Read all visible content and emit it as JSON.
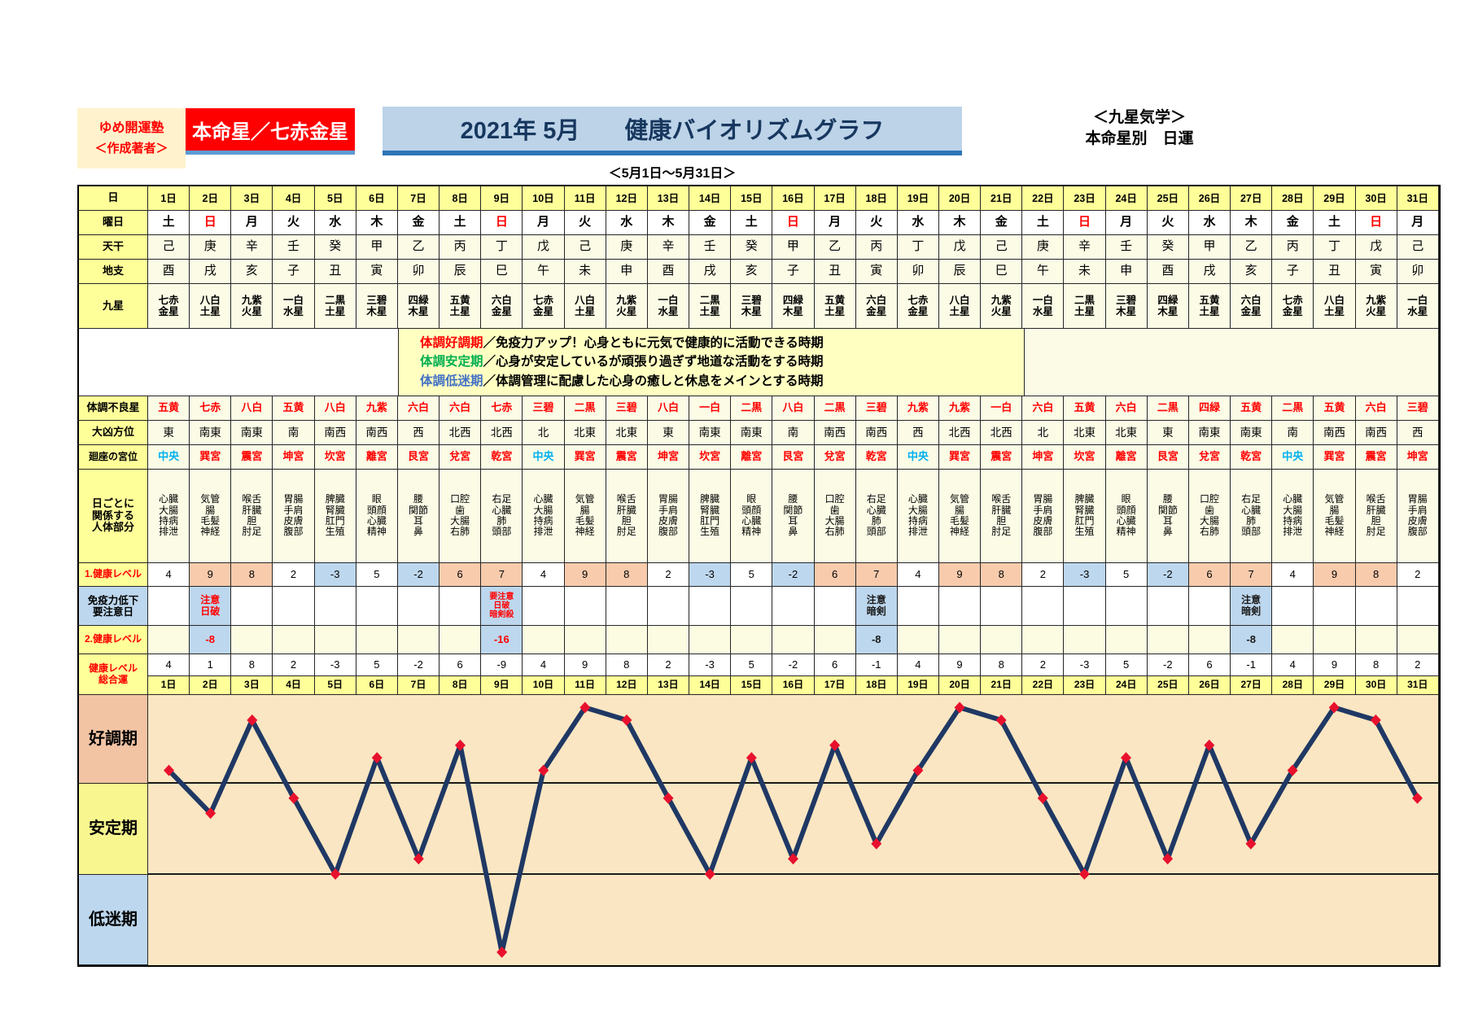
{
  "header": {
    "school": "ゆめ開運塾",
    "author_label": "＜作成著者＞",
    "honmei_label": "本命星／七赤金星",
    "title_date": "2021年 5月",
    "title_main": "健康バイオリズムグラフ",
    "subtitle": "＜5月1日～5月31日＞",
    "right_line1": "＜九星気学＞",
    "right_line2": "本命星別　日運"
  },
  "row_labels": {
    "day": "日",
    "weekday": "曜日",
    "stem": "天干",
    "branch": "地支",
    "star": "九星",
    "bad_star": "体調不良星",
    "direction": "大凶方位",
    "palace": "廻座の宮位",
    "body": "日ごとに\n関係する\n人体部分",
    "health1": "1.健康レベル",
    "immunity": "免疫力低下\n要注意日",
    "health2": "2.健康レベル",
    "total": "健康レベル\n総合運"
  },
  "legend": {
    "items": [
      {
        "term": "体調好調期",
        "color": "#FF0000",
        "desc": "／免疫力アップ！心身ともに元気で健康的に活動できる時期"
      },
      {
        "term": "体調安定期",
        "color": "#00B050",
        "desc": "／心身が安定しているが頑張り過ぎず地道な活動をする時期"
      },
      {
        "term": "体調低迷期",
        "color": "#4472C4",
        "desc": "／体調管理に配慮した心身の癒しと休息をメインとする時期"
      }
    ]
  },
  "days": {
    "numbers": [
      "1日",
      "2日",
      "3日",
      "4日",
      "5日",
      "6日",
      "7日",
      "8日",
      "9日",
      "10日",
      "11日",
      "12日",
      "13日",
      "14日",
      "15日",
      "16日",
      "17日",
      "18日",
      "19日",
      "20日",
      "21日",
      "22日",
      "23日",
      "24日",
      "25日",
      "26日",
      "27日",
      "28日",
      "29日",
      "30日",
      "31日"
    ],
    "weekdays": [
      "土",
      "日",
      "月",
      "火",
      "水",
      "木",
      "金",
      "土",
      "日",
      "月",
      "火",
      "水",
      "木",
      "金",
      "土",
      "日",
      "月",
      "火",
      "水",
      "木",
      "金",
      "土",
      "日",
      "月",
      "火",
      "水",
      "木",
      "金",
      "土",
      "日",
      "月"
    ],
    "stems": [
      "己",
      "庚",
      "辛",
      "壬",
      "癸",
      "甲",
      "乙",
      "丙",
      "丁",
      "戊",
      "己",
      "庚",
      "辛",
      "壬",
      "癸",
      "甲",
      "乙",
      "丙",
      "丁",
      "戊",
      "己",
      "庚",
      "辛",
      "壬",
      "癸",
      "甲",
      "乙",
      "丙",
      "丁",
      "戊",
      "己"
    ],
    "branches": [
      "酉",
      "戌",
      "亥",
      "子",
      "丑",
      "寅",
      "卯",
      "辰",
      "巳",
      "午",
      "未",
      "申",
      "酉",
      "戌",
      "亥",
      "子",
      "丑",
      "寅",
      "卯",
      "辰",
      "巳",
      "午",
      "未",
      "申",
      "酉",
      "戌",
      "亥",
      "子",
      "丑",
      "寅",
      "卯"
    ],
    "stars": [
      "七赤\n金星",
      "八白\n土星",
      "九紫\n火星",
      "一白\n水星",
      "二黒\n土星",
      "三碧\n木星",
      "四緑\n木星",
      "五黄\n土星",
      "六白\n金星",
      "七赤\n金星",
      "八白\n土星",
      "九紫\n火星",
      "一白\n水星",
      "二黒\n土星",
      "三碧\n木星",
      "四緑\n木星",
      "五黄\n土星",
      "六白\n金星",
      "七赤\n金星",
      "八白\n土星",
      "九紫\n火星",
      "一白\n水星",
      "二黒\n土星",
      "三碧\n木星",
      "四緑\n木星",
      "五黄\n土星",
      "六白\n金星",
      "七赤\n金星",
      "八白\n土星",
      "九紫\n火星",
      "一白\n水星"
    ]
  },
  "rows": {
    "bad_star": [
      "五黄",
      "七赤",
      "八白",
      "五黄",
      "八白",
      "九紫",
      "六白",
      "六白",
      "七赤",
      "三碧",
      "二黒",
      "三碧",
      "八白",
      "一白",
      "二黒",
      "八白",
      "二黒",
      "三碧",
      "九紫",
      "九紫",
      "一白",
      "六白",
      "五黄",
      "六白",
      "二黒",
      "四緑",
      "五黄",
      "二黒",
      "五黄",
      "六白",
      "三碧"
    ],
    "direction": [
      "東",
      "南東",
      "南東",
      "南",
      "南西",
      "南西",
      "西",
      "北西",
      "北西",
      "北",
      "北東",
      "北東",
      "東",
      "南東",
      "南東",
      "南",
      "南西",
      "南西",
      "西",
      "北西",
      "北西",
      "北",
      "北東",
      "北東",
      "東",
      "南東",
      "南東",
      "南",
      "南西",
      "南西",
      "西"
    ],
    "palace": [
      "中央",
      "巽宮",
      "震宮",
      "坤宮",
      "坎宮",
      "離宮",
      "艮宮",
      "兌宮",
      "乾宮",
      "中央",
      "巽宮",
      "震宮",
      "坤宮",
      "坎宮",
      "離宮",
      "艮宮",
      "兌宮",
      "乾宮",
      "中央",
      "巽宮",
      "震宮",
      "坤宮",
      "坎宮",
      "離宮",
      "艮宮",
      "兌宮",
      "乾宮",
      "中央",
      "巽宮",
      "震宮",
      "坤宮"
    ],
    "body_parts": [
      "心臓\n大腸\n持病\n排泄",
      "気管\n腸\n毛髪\n神経",
      "喉舌\n肝臓\n胆\n肘足",
      "胃腸\n手肩\n皮膚\n腹部",
      "脾臓\n腎臓\n肛門\n生殖",
      "眼\n頭顔\n心臓\n精神",
      "腰\n関節\n耳\n鼻",
      "口腔\n歯\n大腸\n右肺",
      "右足\n心臓\n肺\n頭部",
      "心臓\n大腸\n持病\n排泄",
      "気管\n腸\n毛髪\n神経",
      "喉舌\n肝臓\n胆\n肘足",
      "胃腸\n手肩\n皮膚\n腹部",
      "脾臓\n腎臓\n肛門\n生殖",
      "眼\n頭顔\n心臓\n精神",
      "腰\n関節\n耳\n鼻",
      "口腔\n歯\n大腸\n右肺",
      "右足\n心臓\n肺\n頭部",
      "心臓\n大腸\n持病\n排泄",
      "気管\n腸\n毛髪\n神経",
      "喉舌\n肝臓\n胆\n肘足",
      "胃腸\n手肩\n皮膚\n腹部",
      "脾臓\n腎臓\n肛門\n生殖",
      "眼\n頭顔\n心臓\n精神",
      "腰\n関節\n耳\n鼻",
      "口腔\n歯\n大腸\n右肺",
      "右足\n心臓\n肺\n頭部",
      "心臓\n大腸\n持病\n排泄",
      "気管\n腸\n毛髪\n神経",
      "喉舌\n肝臓\n胆\n肘足",
      "胃腸\n手肩\n皮膚\n腹部"
    ],
    "health1": [
      4,
      9,
      8,
      2,
      -3,
      5,
      -2,
      6,
      7,
      4,
      9,
      8,
      2,
      -3,
      5,
      -2,
      6,
      7,
      4,
      9,
      8,
      2,
      -3,
      5,
      -2,
      6,
      7,
      4,
      9,
      8,
      2
    ],
    "caution": [
      null,
      {
        "text": "注意\n日破",
        "color": "#FF0000",
        "small": false
      },
      null,
      null,
      null,
      null,
      null,
      null,
      {
        "text": "要注意\n日破\n暗剣殺",
        "color": "#FF0000",
        "small": true
      },
      null,
      null,
      null,
      null,
      null,
      null,
      null,
      null,
      {
        "text": "注意\n暗剣",
        "color": "#1a1a1a",
        "small": false
      },
      null,
      null,
      null,
      null,
      null,
      null,
      null,
      null,
      {
        "text": "注意\n暗剣",
        "color": "#1a1a1a",
        "small": false
      },
      null,
      null,
      null,
      null
    ],
    "health2": [
      null,
      {
        "v": "-8",
        "color": "#FF0000"
      },
      null,
      null,
      null,
      null,
      null,
      null,
      {
        "v": "-16",
        "color": "#FF0000"
      },
      null,
      null,
      null,
      null,
      null,
      null,
      null,
      null,
      {
        "v": "-8",
        "color": "#1a1a1a"
      },
      null,
      null,
      null,
      null,
      null,
      null,
      null,
      null,
      {
        "v": "-8",
        "color": "#1a1a1a"
      },
      null,
      null,
      null,
      null
    ],
    "total": [
      4,
      1,
      8,
      2,
      -3,
      5,
      -2,
      6,
      -9,
      4,
      9,
      8,
      2,
      -3,
      5,
      -2,
      6,
      -1,
      4,
      9,
      8,
      2,
      -3,
      5,
      -2,
      6,
      -1,
      4,
      9,
      8,
      2
    ]
  },
  "chart_data": {
    "type": "line",
    "title": "健康バイオリズムグラフ 2021年5月（健康レベル総合運）",
    "x_labels": [
      "1日",
      "2日",
      "3日",
      "4日",
      "5日",
      "6日",
      "7日",
      "8日",
      "9日",
      "10日",
      "11日",
      "12日",
      "13日",
      "14日",
      "15日",
      "16日",
      "17日",
      "18日",
      "19日",
      "20日",
      "21日",
      "22日",
      "23日",
      "24日",
      "25日",
      "26日",
      "27日",
      "28日",
      "29日",
      "30日",
      "31日"
    ],
    "values": [
      4,
      1,
      8,
      2,
      -3,
      5,
      -2,
      6,
      -9,
      4,
      9,
      8,
      2,
      -3,
      5,
      -2,
      6,
      -1,
      4,
      9,
      8,
      2,
      -3,
      5,
      -2,
      6,
      -1,
      4,
      9,
      8,
      2
    ],
    "ylim": [
      -10,
      10
    ],
    "zone_boundaries": [
      3,
      -3
    ],
    "zones": [
      {
        "label": "好調期",
        "color": "#F2C4A4"
      },
      {
        "label": "安定期",
        "color": "#F8F78F"
      },
      {
        "label": "低迷期",
        "color": "#BDD7EE"
      }
    ],
    "grid": false,
    "legend_position": "none",
    "line_color": "#1F3864",
    "marker_color": "#E8112D",
    "plot_bg": "#FAE6C2"
  },
  "colors": {
    "header_yellow": "#FFFF99",
    "ivory": "#FBFBE6",
    "peach_highlight": "#F8CBAD",
    "blue_highlight": "#BDD7EE",
    "sunday_red": "#FF0000",
    "palace_red": "#FF0000",
    "palace_center_blue": "#00B0F0",
    "legend_bg": "#FFFFC2",
    "title_bg": "#BCD3E8",
    "title_underline": "#2E75B6",
    "banner_red": "#FF0000"
  }
}
